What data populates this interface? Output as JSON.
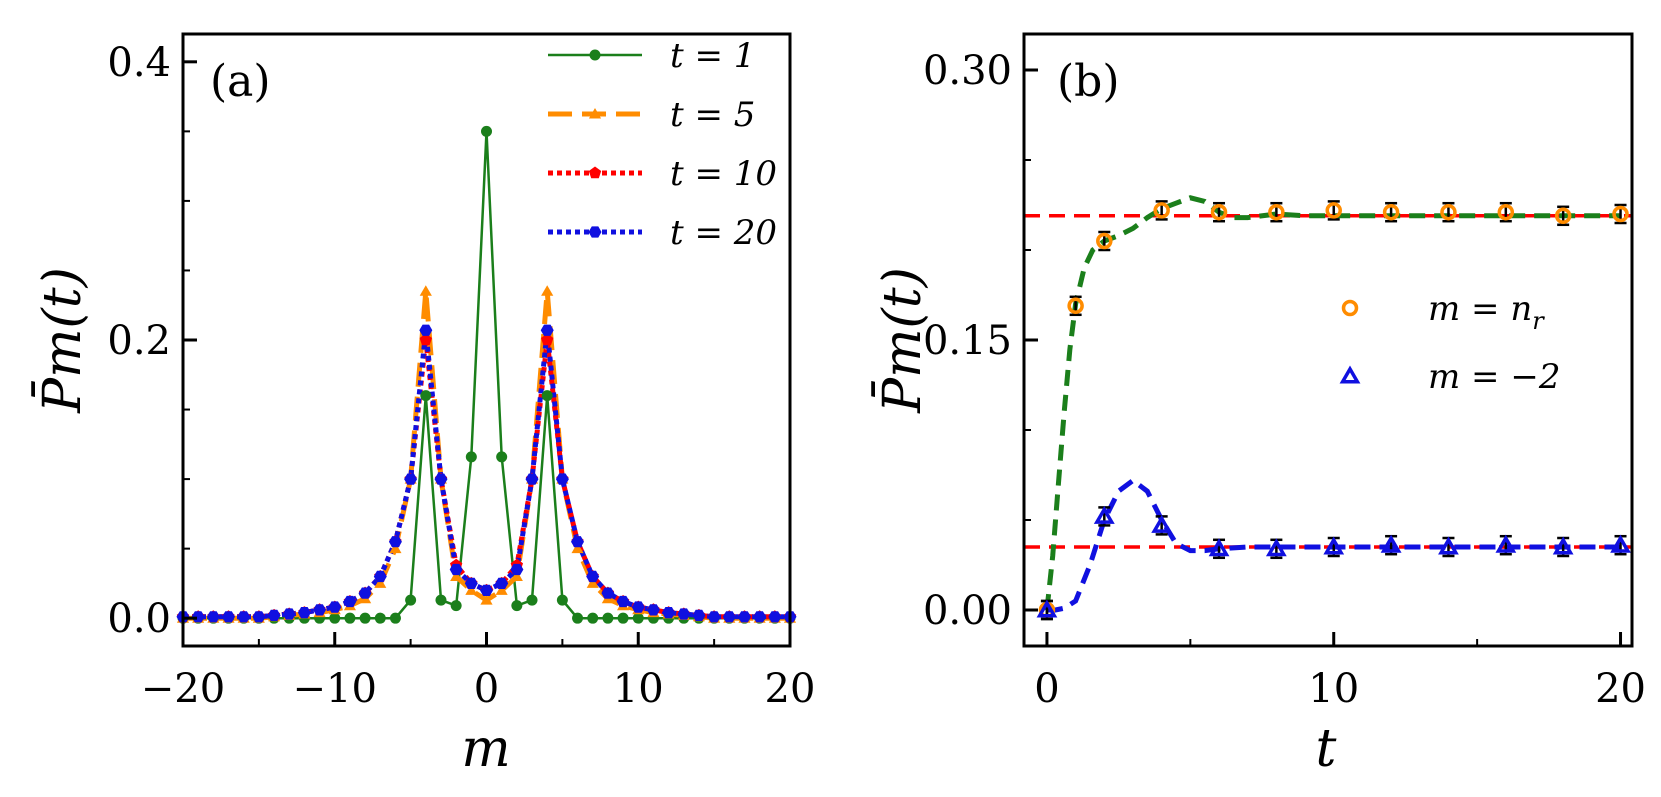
{
  "chart_data": [
    {
      "panel_label": "(a)",
      "type": "line",
      "xlabel": "m",
      "ylabel": "P̄m(t)",
      "xlim": [
        -20,
        20
      ],
      "ylim": [
        -0.02,
        0.42
      ],
      "xticks": [
        -20,
        -10,
        0,
        10,
        20
      ],
      "xtick_labels": [
        "−20",
        "−10",
        "0",
        "10",
        "20"
      ],
      "yticks": [
        0.0,
        0.2,
        0.4
      ],
      "ytick_labels": [
        "0.0",
        "0.2",
        "0.4"
      ],
      "legend_position": "top-right",
      "x": [
        -20,
        -19,
        -18,
        -17,
        -16,
        -15,
        -14,
        -13,
        -12,
        -11,
        -10,
        -9,
        -8,
        -7,
        -6,
        -5,
        -4,
        -3,
        -2,
        -1,
        0,
        1,
        2,
        3,
        4,
        5,
        6,
        7,
        8,
        9,
        10,
        11,
        12,
        13,
        14,
        15,
        16,
        17,
        18,
        19,
        20
      ],
      "series": [
        {
          "name": "t = 1",
          "color": "#1b7f1b",
          "dash": "solid",
          "marker": "circle",
          "values": [
            0,
            0,
            0,
            0,
            0,
            0,
            0,
            0,
            0,
            0,
            0,
            0,
            0,
            0,
            0,
            0.013,
            0.16,
            0.013,
            0.009,
            0.116,
            0.35,
            0.116,
            0.009,
            0.013,
            0.16,
            0.013,
            0,
            0,
            0,
            0,
            0,
            0,
            0,
            0,
            0,
            0,
            0,
            0,
            0,
            0,
            0
          ]
        },
        {
          "name": "t = 5",
          "color": "#ff8c00",
          "dash": "long-dash",
          "marker": "triangle",
          "values": [
            0.0,
            0.0,
            0.0,
            0.0,
            0.0,
            0.0,
            0.001,
            0.002,
            0.003,
            0.004,
            0.006,
            0.009,
            0.014,
            0.025,
            0.05,
            0.1,
            0.235,
            0.1,
            0.03,
            0.02,
            0.013,
            0.02,
            0.03,
            0.1,
            0.235,
            0.1,
            0.05,
            0.025,
            0.014,
            0.009,
            0.006,
            0.004,
            0.003,
            0.002,
            0.001,
            0.0,
            0.0,
            0.0,
            0.0,
            0.0,
            0.0
          ]
        },
        {
          "name": "t = 10",
          "color": "#ff0000",
          "dash": "dotted",
          "marker": "pentagon",
          "values": [
            0.001,
            0.001,
            0.001,
            0.001,
            0.001,
            0.001,
            0.002,
            0.003,
            0.004,
            0.006,
            0.008,
            0.012,
            0.018,
            0.03,
            0.055,
            0.1,
            0.2,
            0.1,
            0.038,
            0.025,
            0.02,
            0.025,
            0.038,
            0.1,
            0.2,
            0.1,
            0.055,
            0.03,
            0.018,
            0.012,
            0.008,
            0.006,
            0.004,
            0.003,
            0.002,
            0.001,
            0.001,
            0.001,
            0.001,
            0.001,
            0.001
          ]
        },
        {
          "name": "t = 20",
          "color": "#1010e0",
          "dash": "dotted",
          "marker": "hexagon",
          "values": [
            0.001,
            0.001,
            0.001,
            0.001,
            0.001,
            0.001,
            0.002,
            0.003,
            0.004,
            0.006,
            0.008,
            0.012,
            0.018,
            0.03,
            0.055,
            0.1,
            0.207,
            0.1,
            0.035,
            0.025,
            0.02,
            0.025,
            0.035,
            0.1,
            0.207,
            0.1,
            0.055,
            0.03,
            0.018,
            0.012,
            0.008,
            0.006,
            0.004,
            0.003,
            0.002,
            0.001,
            0.001,
            0.001,
            0.001,
            0.001,
            0.001
          ]
        }
      ]
    },
    {
      "panel_label": "(b)",
      "type": "line",
      "xlabel": "t",
      "ylabel": "P̄m(t)",
      "xlim": [
        -0.8,
        20.4
      ],
      "ylim": [
        -0.02,
        0.32
      ],
      "xticks": [
        0,
        10,
        20
      ],
      "xtick_labels": [
        "0",
        "10",
        "20"
      ],
      "yticks": [
        0.0,
        0.15,
        0.3
      ],
      "ytick_labels": [
        "0.00",
        "0.15",
        "0.30"
      ],
      "legend_position": "center-right",
      "reference_lines": [
        {
          "y": 0.219,
          "color": "#ff0000",
          "dash": "dashed"
        },
        {
          "y": 0.035,
          "color": "#ff0000",
          "dash": "dashed"
        }
      ],
      "curves": [
        {
          "color": "#1b7f1b",
          "dash": "dashed",
          "x": [
            0,
            0.2,
            0.4,
            0.6,
            0.8,
            1.0,
            1.3,
            1.6,
            2.0,
            2.5,
            3.0,
            3.5,
            4.0,
            4.5,
            5.0,
            5.5,
            6.0,
            6.5,
            7.0,
            8.0,
            9.0,
            10,
            12,
            14,
            16,
            18,
            20
          ],
          "y": [
            0,
            0.03,
            0.07,
            0.11,
            0.145,
            0.17,
            0.19,
            0.2,
            0.205,
            0.208,
            0.212,
            0.218,
            0.223,
            0.226,
            0.229,
            0.227,
            0.221,
            0.218,
            0.218,
            0.22,
            0.219,
            0.219,
            0.219,
            0.219,
            0.219,
            0.219,
            0.219
          ]
        },
        {
          "color": "#1010e0",
          "dash": "dashed",
          "x": [
            0,
            0.3,
            0.6,
            1.0,
            1.5,
            2.0,
            2.5,
            3.0,
            3.5,
            4.0,
            4.5,
            5.0,
            5.5,
            6.0,
            7.0,
            8.0,
            10,
            12,
            14,
            16,
            18,
            20
          ],
          "y": [
            0,
            0.0,
            0.001,
            0.005,
            0.025,
            0.05,
            0.066,
            0.072,
            0.066,
            0.05,
            0.037,
            0.033,
            0.033,
            0.034,
            0.035,
            0.035,
            0.035,
            0.035,
            0.035,
            0.035,
            0.035,
            0.035
          ]
        }
      ],
      "series": [
        {
          "name": "m = n_r",
          "legend_main": "m = n",
          "legend_sub": "r",
          "color": "#ff8c00",
          "marker": "open-circle",
          "x": [
            0,
            1,
            2,
            4,
            6,
            8,
            10,
            12,
            14,
            16,
            18,
            20
          ],
          "values": [
            0,
            0.169,
            0.205,
            0.222,
            0.221,
            0.221,
            0.222,
            0.221,
            0.221,
            0.221,
            0.219,
            0.22
          ]
        },
        {
          "name": "m = −2",
          "legend_main": "m = −2",
          "legend_sub": "",
          "color": "#1010e0",
          "marker": "open-triangle",
          "x": [
            0,
            2,
            4,
            6,
            8,
            10,
            12,
            14,
            16,
            18,
            20
          ],
          "values": [
            0,
            0.052,
            0.047,
            0.034,
            0.034,
            0.035,
            0.036,
            0.035,
            0.036,
            0.035,
            0.036
          ]
        }
      ]
    }
  ]
}
